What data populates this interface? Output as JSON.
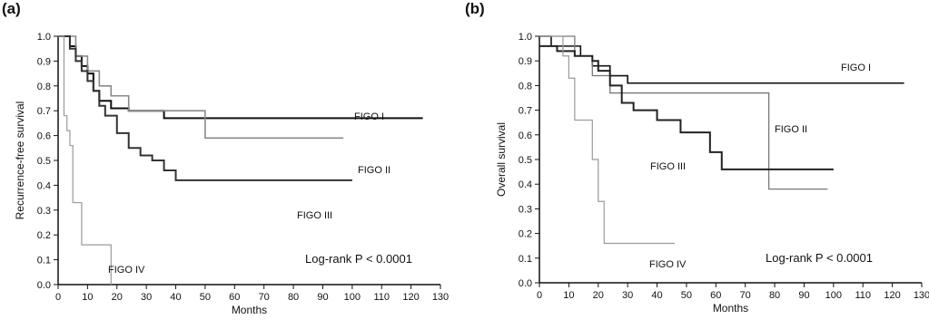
{
  "charts": [
    {
      "panel_label": "(a)",
      "chart_data": {
        "type": "line",
        "step": true,
        "title": "",
        "xlabel": "Months",
        "ylabel": "Recurrence-free survival",
        "xlim": [
          0,
          130
        ],
        "ylim": [
          0.0,
          1.0
        ],
        "xticks": [
          0,
          10,
          20,
          30,
          40,
          50,
          60,
          70,
          80,
          90,
          100,
          110,
          120,
          130
        ],
        "yticks": [
          0.0,
          0.1,
          0.2,
          0.3,
          0.4,
          0.5,
          0.6,
          0.7,
          0.8,
          0.9,
          1.0
        ],
        "ytick_labels": [
          "0.0",
          "0.1",
          "0.2",
          "0.3",
          "0.4",
          "0.5",
          "0.6",
          "0.7",
          "0.8",
          "0.9",
          "1.0"
        ],
        "grid": false,
        "series": [
          {
            "name": "FIGO I",
            "color": "#111111",
            "width": 2.0,
            "x": [
              0,
              4,
              6,
              8,
              10,
              12,
              14,
              18,
              24,
              36,
              124
            ],
            "y": [
              1.0,
              0.96,
              0.92,
              0.88,
              0.85,
              0.78,
              0.74,
              0.71,
              0.7,
              0.67,
              0.67
            ]
          },
          {
            "name": "FIGO II",
            "color": "#8a8a8a",
            "width": 1.6,
            "x": [
              0,
              6,
              10,
              14,
              18,
              24,
              50,
              97
            ],
            "y": [
              1.0,
              0.92,
              0.86,
              0.8,
              0.76,
              0.7,
              0.59,
              0.59
            ]
          },
          {
            "name": "FIGO III",
            "color": "#333333",
            "width": 2.0,
            "x": [
              0,
              4,
              6,
              8,
              10,
              12,
              14,
              16,
              20,
              24,
              28,
              32,
              36,
              40,
              100
            ],
            "y": [
              1.0,
              0.95,
              0.9,
              0.86,
              0.82,
              0.78,
              0.72,
              0.68,
              0.61,
              0.55,
              0.52,
              0.5,
              0.46,
              0.42,
              0.42
            ]
          },
          {
            "name": "FIGO IV",
            "color": "#9a9a9a",
            "width": 1.2,
            "x": [
              0,
              2,
              3,
              4,
              5,
              8,
              14,
              18
            ],
            "y": [
              1.0,
              0.68,
              0.62,
              0.56,
              0.33,
              0.16,
              0.16,
              0.0
            ]
          }
        ],
        "annotations": [
          "FIGO I",
          "FIGO II",
          "FIGO III",
          "FIGO IV",
          "Log-rank  P < 0.0001"
        ]
      }
    },
    {
      "panel_label": "(b)",
      "chart_data": {
        "type": "line",
        "step": true,
        "title": "",
        "xlabel": "Months",
        "ylabel": "Overall survival",
        "xlim": [
          0,
          130
        ],
        "ylim": [
          0.0,
          1.0
        ],
        "xticks": [
          0,
          10,
          20,
          30,
          40,
          50,
          60,
          70,
          80,
          90,
          100,
          110,
          120,
          130
        ],
        "yticks": [
          0.0,
          0.1,
          0.2,
          0.3,
          0.4,
          0.5,
          0.6,
          0.7,
          0.8,
          0.9,
          1.0
        ],
        "ytick_labels": [
          "0.0",
          "0.1",
          "0.2",
          "0.3",
          "0.4",
          "0.5",
          "0.6",
          "0.7",
          "0.8",
          "0.9",
          "1.0"
        ],
        "grid": false,
        "series": [
          {
            "name": "FIGO I",
            "color": "#111111",
            "width": 1.6,
            "x": [
              0,
              4,
              14,
              18,
              24,
              30,
              124
            ],
            "y": [
              1.0,
              0.96,
              0.92,
              0.88,
              0.84,
              0.81,
              0.81
            ]
          },
          {
            "name": "FIGO II",
            "color": "#777777",
            "width": 1.3,
            "x": [
              0,
              12,
              18,
              24,
              78,
              98
            ],
            "y": [
              1.0,
              0.92,
              0.84,
              0.77,
              0.38,
              0.38
            ]
          },
          {
            "name": "FIGO III",
            "color": "#222222",
            "width": 2.0,
            "x": [
              0,
              6,
              12,
              18,
              20,
              24,
              28,
              32,
              40,
              48,
              58,
              62,
              100
            ],
            "y": [
              0.96,
              0.94,
              0.92,
              0.9,
              0.86,
              0.8,
              0.73,
              0.7,
              0.66,
              0.61,
              0.53,
              0.46,
              0.46
            ]
          },
          {
            "name": "FIGO IV",
            "color": "#9a9a9a",
            "width": 1.2,
            "x": [
              0,
              8,
              10,
              12,
              18,
              20,
              22,
              26,
              46
            ],
            "y": [
              1.0,
              0.92,
              0.83,
              0.66,
              0.5,
              0.33,
              0.16,
              0.16,
              0.16
            ]
          }
        ],
        "annotations": [
          "FIGO I",
          "FIGO II",
          "FIGO III",
          "FIGO IV",
          "Log-rank  P < 0.0001"
        ]
      }
    }
  ]
}
